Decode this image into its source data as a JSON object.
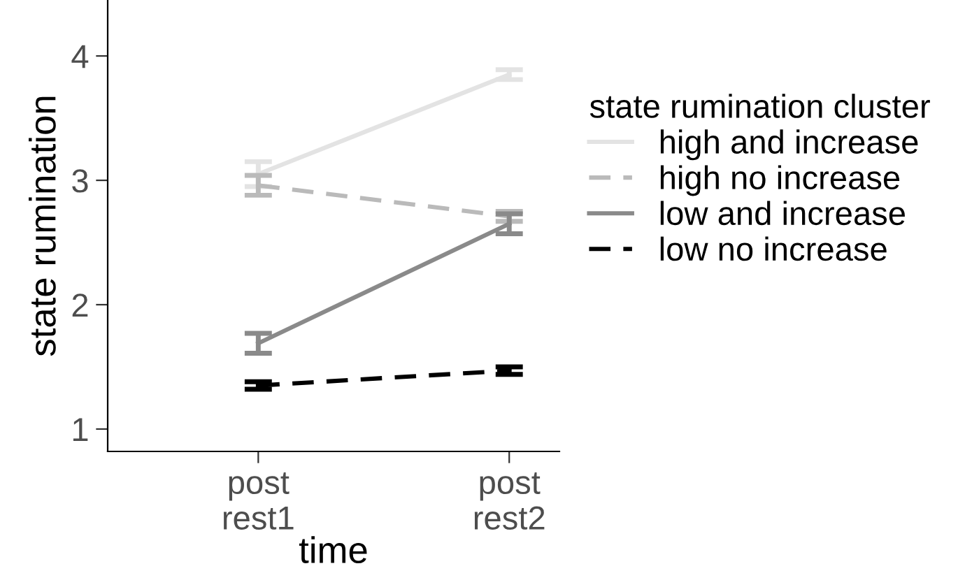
{
  "chart_data": {
    "type": "line",
    "xlabel": "time",
    "ylabel": "state rumination",
    "legend_title": "state rumination cluster",
    "categories": [
      "post\nrest1",
      "post\nrest2"
    ],
    "series": [
      {
        "name": "high and increase",
        "color": "#e3e3e3",
        "line_style": "solid",
        "values": [
          3.05,
          3.85
        ],
        "errors": [
          0.1,
          0.04
        ]
      },
      {
        "name": "high no increase",
        "color": "#bababa",
        "line_style": "dashed",
        "values": [
          2.96,
          2.71
        ],
        "errors": [
          0.08,
          0.04
        ]
      },
      {
        "name": "low and increase",
        "color": "#8a8a8a",
        "line_style": "solid",
        "values": [
          1.69,
          2.65
        ],
        "errors": [
          0.08,
          0.08
        ]
      },
      {
        "name": "low no increase",
        "color": "#000000",
        "line_style": "dashed",
        "values": [
          1.35,
          1.47
        ],
        "errors": [
          0.03,
          0.03
        ]
      }
    ],
    "ylim": [
      0.82,
      4.45
    ],
    "yticks": [
      1,
      2,
      3,
      4
    ],
    "grid": false,
    "legend": "right",
    "marker": "none"
  }
}
